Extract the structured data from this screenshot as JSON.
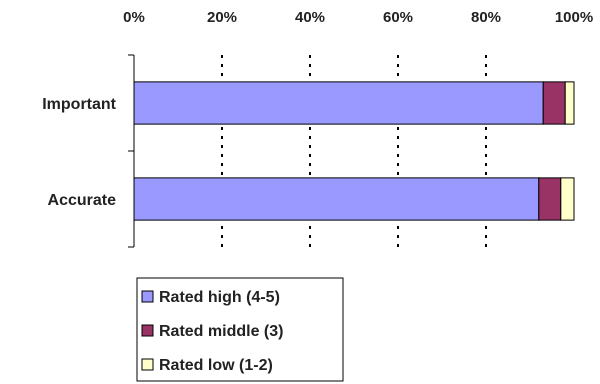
{
  "chart_data": {
    "type": "bar",
    "orientation": "horizontal",
    "stacked": true,
    "percent": true,
    "categories": [
      "Important",
      "Accurate"
    ],
    "series": [
      {
        "name": "Rated high (4-5)",
        "values": [
          93,
          92
        ],
        "color": "#9999ff"
      },
      {
        "name": "Rated middle (3)",
        "values": [
          5,
          5
        ],
        "color": "#993366"
      },
      {
        "name": "Rated low (1-2)",
        "values": [
          2,
          3
        ],
        "color": "#ffffcc"
      }
    ],
    "xlim": [
      0,
      100
    ],
    "xticks": [
      "0%",
      "20%",
      "40%",
      "60%",
      "80%",
      "100%"
    ],
    "x_axis_position": "top",
    "grid": "vertical dotted",
    "legend": "bottom-left"
  }
}
